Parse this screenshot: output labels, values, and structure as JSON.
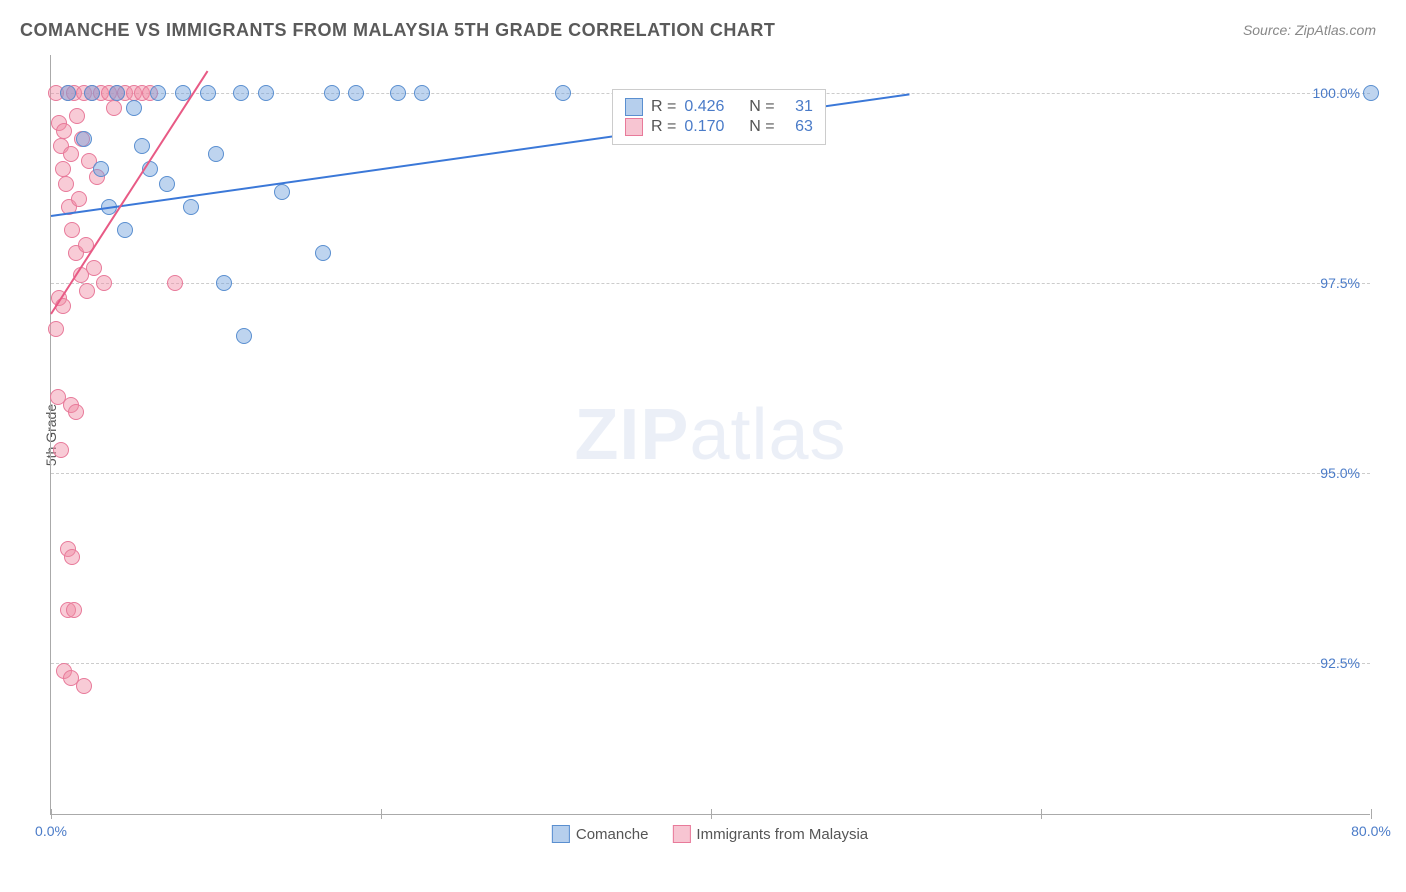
{
  "header": {
    "title": "COMANCHE VS IMMIGRANTS FROM MALAYSIA 5TH GRADE CORRELATION CHART",
    "source_prefix": "Source: ",
    "source": "ZipAtlas.com"
  },
  "chart": {
    "type": "scatter",
    "ylabel": "5th Grade",
    "xlim": [
      0,
      80
    ],
    "ylim": [
      90.5,
      100.5
    ],
    "xtick_positions": [
      0,
      20,
      40,
      60,
      80
    ],
    "xtick_labels": [
      "0.0%",
      "",
      "",
      "",
      "80.0%"
    ],
    "ytick_positions": [
      92.5,
      95.0,
      97.5,
      100.0
    ],
    "ytick_labels": [
      "92.5%",
      "95.0%",
      "97.5%",
      "100.0%"
    ],
    "background_color": "#ffffff",
    "grid_color": "#cccccc",
    "marker_size": 16,
    "series": {
      "comanche": {
        "label": "Comanche",
        "color_fill": "rgba(110,160,220,0.45)",
        "color_border": "#5a8fd0",
        "R": "0.426",
        "N": "31",
        "trend": {
          "x1": 0,
          "y1": 98.4,
          "x2": 52,
          "y2": 100.0
        },
        "points": [
          {
            "x": 1.0,
            "y": 100.0
          },
          {
            "x": 2.0,
            "y": 99.4
          },
          {
            "x": 2.5,
            "y": 100.0
          },
          {
            "x": 3.0,
            "y": 99.0
          },
          {
            "x": 3.5,
            "y": 98.5
          },
          {
            "x": 4.0,
            "y": 100.0
          },
          {
            "x": 4.5,
            "y": 98.2
          },
          {
            "x": 5.0,
            "y": 99.8
          },
          {
            "x": 5.5,
            "y": 99.3
          },
          {
            "x": 6.0,
            "y": 99.0
          },
          {
            "x": 6.5,
            "y": 100.0
          },
          {
            "x": 7.0,
            "y": 98.8
          },
          {
            "x": 8.0,
            "y": 100.0
          },
          {
            "x": 8.5,
            "y": 98.5
          },
          {
            "x": 9.5,
            "y": 100.0
          },
          {
            "x": 10.0,
            "y": 99.2
          },
          {
            "x": 10.5,
            "y": 97.5
          },
          {
            "x": 11.5,
            "y": 100.0
          },
          {
            "x": 11.7,
            "y": 96.8
          },
          {
            "x": 13.0,
            "y": 100.0
          },
          {
            "x": 14.0,
            "y": 98.7
          },
          {
            "x": 16.5,
            "y": 97.9
          },
          {
            "x": 17.0,
            "y": 100.0
          },
          {
            "x": 18.5,
            "y": 100.0
          },
          {
            "x": 21.0,
            "y": 100.0
          },
          {
            "x": 22.5,
            "y": 100.0
          },
          {
            "x": 31.0,
            "y": 100.0
          },
          {
            "x": 80.0,
            "y": 100.0
          }
        ]
      },
      "malaysia": {
        "label": "Immigrants from Malaysia",
        "color_fill": "rgba(240,140,165,0.45)",
        "color_border": "#e87a9a",
        "R": "0.170",
        "N": "63",
        "trend": {
          "x1": 0,
          "y1": 97.1,
          "x2": 9.5,
          "y2": 100.3
        },
        "points": [
          {
            "x": 0.3,
            "y": 100.0
          },
          {
            "x": 0.5,
            "y": 99.6
          },
          {
            "x": 0.6,
            "y": 99.3
          },
          {
            "x": 0.7,
            "y": 99.0
          },
          {
            "x": 0.8,
            "y": 99.5
          },
          {
            "x": 0.9,
            "y": 98.8
          },
          {
            "x": 1.0,
            "y": 100.0
          },
          {
            "x": 1.1,
            "y": 98.5
          },
          {
            "x": 1.2,
            "y": 99.2
          },
          {
            "x": 1.3,
            "y": 98.2
          },
          {
            "x": 1.4,
            "y": 100.0
          },
          {
            "x": 1.5,
            "y": 97.9
          },
          {
            "x": 1.6,
            "y": 99.7
          },
          {
            "x": 1.7,
            "y": 98.6
          },
          {
            "x": 1.8,
            "y": 97.6
          },
          {
            "x": 1.9,
            "y": 99.4
          },
          {
            "x": 2.0,
            "y": 100.0
          },
          {
            "x": 2.1,
            "y": 98.0
          },
          {
            "x": 2.2,
            "y": 97.4
          },
          {
            "x": 2.3,
            "y": 99.1
          },
          {
            "x": 2.5,
            "y": 100.0
          },
          {
            "x": 2.6,
            "y": 97.7
          },
          {
            "x": 2.8,
            "y": 98.9
          },
          {
            "x": 3.0,
            "y": 100.0
          },
          {
            "x": 3.2,
            "y": 97.5
          },
          {
            "x": 3.5,
            "y": 100.0
          },
          {
            "x": 3.8,
            "y": 99.8
          },
          {
            "x": 4.0,
            "y": 100.0
          },
          {
            "x": 4.5,
            "y": 100.0
          },
          {
            "x": 5.0,
            "y": 100.0
          },
          {
            "x": 5.5,
            "y": 100.0
          },
          {
            "x": 6.0,
            "y": 100.0
          },
          {
            "x": 7.5,
            "y": 97.5
          },
          {
            "x": 0.5,
            "y": 97.3
          },
          {
            "x": 0.7,
            "y": 97.2
          },
          {
            "x": 0.3,
            "y": 96.9
          },
          {
            "x": 0.4,
            "y": 96.0
          },
          {
            "x": 1.2,
            "y": 95.9
          },
          {
            "x": 1.5,
            "y": 95.8
          },
          {
            "x": 0.6,
            "y": 95.3
          },
          {
            "x": 1.0,
            "y": 94.0
          },
          {
            "x": 1.3,
            "y": 93.9
          },
          {
            "x": 1.0,
            "y": 93.2
          },
          {
            "x": 1.4,
            "y": 93.2
          },
          {
            "x": 0.8,
            "y": 92.4
          },
          {
            "x": 1.2,
            "y": 92.3
          },
          {
            "x": 2.0,
            "y": 92.2
          }
        ]
      }
    },
    "watermark": {
      "zip": "ZIP",
      "atlas": "atlas"
    }
  }
}
